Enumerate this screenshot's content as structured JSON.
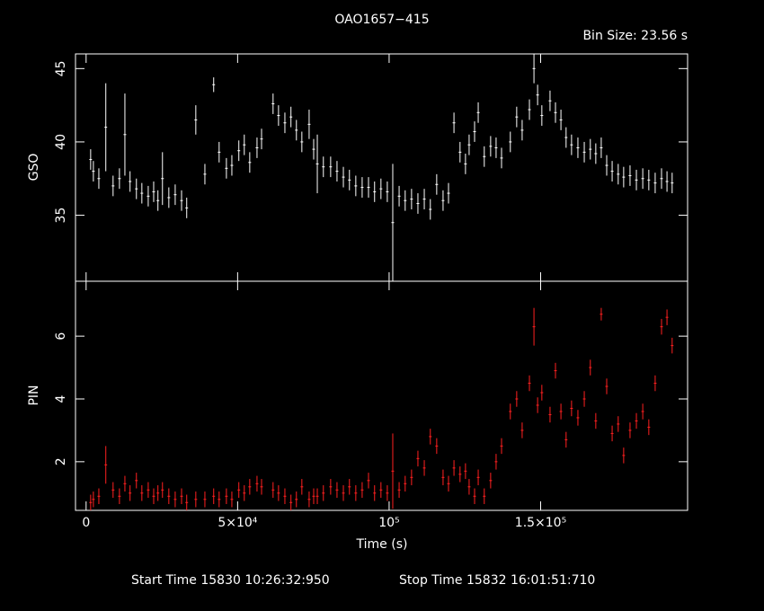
{
  "chart_data": [
    {
      "type": "errorbar",
      "title": "OAO1657−415",
      "subtitle": "Bin Size: 23.56 s",
      "ylabel": "GSO",
      "color": "#ffffff",
      "xlim": [
        -3500,
        198500
      ],
      "ylim": [
        30.5,
        46
      ],
      "yticks": [
        35,
        40,
        45
      ],
      "x": [
        1500,
        2400,
        4200,
        6500,
        8900,
        11000,
        12800,
        14500,
        16600,
        18400,
        20500,
        22300,
        23700,
        25200,
        27300,
        29400,
        31500,
        33200,
        36200,
        39200,
        42100,
        43900,
        46300,
        48100,
        50400,
        52200,
        54000,
        56400,
        57900,
        61700,
        63500,
        65600,
        67600,
        69400,
        71200,
        73600,
        75100,
        76300,
        78300,
        80700,
        82800,
        84900,
        86900,
        89000,
        91100,
        93200,
        95200,
        97300,
        99400,
        101200,
        103300,
        105300,
        107400,
        109500,
        111600,
        113600,
        115700,
        117800,
        119600,
        121400,
        123400,
        125200,
        126400,
        128200,
        129400,
        131400,
        133500,
        135300,
        137100,
        140000,
        142100,
        143900,
        146300,
        147800,
        149000,
        150400,
        153100,
        154900,
        156700,
        158400,
        160200,
        162300,
        164400,
        166400,
        168200,
        170000,
        171800,
        173600,
        175600,
        177400,
        179500,
        181600,
        183700,
        185700,
        187800,
        189900,
        191700,
        193400
      ],
      "values": [
        38.8,
        38.0,
        37.5,
        41,
        37.0,
        37.5,
        40.5,
        37.3,
        36.8,
        36.5,
        36.3,
        36.6,
        36.0,
        37.5,
        36.2,
        36.4,
        36.0,
        35.5,
        41.5,
        37.8,
        43.9,
        39.3,
        38.2,
        38.4,
        39.4,
        39.8,
        38.6,
        39.6,
        40.2,
        42.6,
        41.8,
        41.3,
        41.7,
        40.8,
        40.0,
        41.2,
        39.5,
        38.5,
        38.3,
        38.3,
        38.0,
        37.6,
        37.4,
        37.0,
        36.9,
        36.9,
        36.6,
        36.8,
        36.6,
        34.5,
        36.3,
        36.0,
        36.1,
        35.8,
        36.1,
        35.4,
        37.1,
        36.0,
        36.5,
        41.3,
        39.3,
        38.5,
        39.8,
        40.7,
        42.0,
        39.0,
        39.7,
        39.6,
        38.9,
        40.0,
        41.7,
        40.8,
        42.2,
        45.0,
        43.2,
        41.8,
        42.8,
        42.0,
        41.5,
        40.3,
        39.8,
        39.6,
        39.3,
        39.5,
        39.2,
        39.6,
        38.4,
        38.0,
        37.8,
        37.6,
        37.7,
        37.4,
        37.5,
        37.4,
        37.2,
        37.5,
        37.3,
        37.2
      ],
      "errors": [
        0.7,
        0.7,
        0.7,
        3,
        0.7,
        0.7,
        2.8,
        0.7,
        0.7,
        0.7,
        0.7,
        0.7,
        0.7,
        1.8,
        0.7,
        0.7,
        0.7,
        0.7,
        1,
        0.7,
        0.5,
        0.7,
        0.7,
        0.7,
        0.7,
        0.7,
        0.7,
        0.7,
        0.7,
        0.7,
        0.7,
        0.7,
        0.7,
        0.7,
        0.7,
        1,
        0.7,
        2,
        0.7,
        0.7,
        0.7,
        0.7,
        0.7,
        0.7,
        0.7,
        0.7,
        0.7,
        0.7,
        0.7,
        4,
        0.7,
        0.7,
        0.7,
        0.7,
        0.7,
        0.7,
        0.7,
        0.7,
        0.7,
        0.7,
        0.7,
        0.7,
        0.7,
        0.7,
        0.7,
        0.7,
        0.7,
        0.7,
        0.7,
        0.7,
        0.7,
        0.7,
        0.7,
        1,
        0.7,
        0.7,
        0.7,
        0.7,
        0.7,
        0.7,
        0.7,
        0.7,
        0.7,
        0.7,
        0.7,
        0.7,
        0.7,
        0.7,
        0.7,
        0.7,
        0.7,
        0.7,
        0.7,
        0.7,
        0.7,
        0.7,
        0.7,
        0.7
      ]
    },
    {
      "type": "errorbar",
      "ylabel": "PIN",
      "xlabel": "Time (s)",
      "color": "#ff2020",
      "xlim": [
        -3500,
        198500
      ],
      "ylim": [
        0.45,
        7.75
      ],
      "yticks": [
        2,
        4,
        6
      ],
      "xticks": [
        0,
        {
          "value": 50000,
          "label": "5×10⁴"
        },
        {
          "value": 100000,
          "label": "10⁵"
        },
        {
          "value": 150000,
          "label": "1.5×10⁵"
        }
      ],
      "x": [
        1500,
        2400,
        4200,
        6500,
        8900,
        11000,
        12800,
        14500,
        16600,
        18400,
        20500,
        22300,
        23700,
        25200,
        27300,
        29400,
        31500,
        33200,
        36200,
        39200,
        42100,
        43900,
        46300,
        48100,
        50400,
        52200,
        54000,
        56400,
        57900,
        61700,
        63500,
        65600,
        67600,
        69400,
        71200,
        73600,
        75100,
        76300,
        78300,
        80700,
        82800,
        84900,
        86900,
        89000,
        91100,
        93200,
        95200,
        97300,
        99400,
        101200,
        103300,
        105300,
        107400,
        109500,
        111600,
        113600,
        115700,
        117800,
        119600,
        121400,
        123400,
        125200,
        126400,
        128200,
        129400,
        131400,
        133500,
        135300,
        137100,
        140000,
        142100,
        143900,
        146300,
        147800,
        149000,
        150400,
        153100,
        154900,
        156700,
        158400,
        160200,
        162300,
        164400,
        166400,
        168200,
        170000,
        171800,
        173600,
        175600,
        177400,
        179500,
        181600,
        183700,
        185700,
        187800,
        189900,
        191700,
        193400
      ],
      "values": [
        0.7,
        0.8,
        0.9,
        1.9,
        1.1,
        0.9,
        1.3,
        1.0,
        1.4,
        1.0,
        1.1,
        0.9,
        1.0,
        1.1,
        0.9,
        0.8,
        0.9,
        0.7,
        0.8,
        0.8,
        0.9,
        0.8,
        0.9,
        0.8,
        1.1,
        1.0,
        1.2,
        1.3,
        1.2,
        1.1,
        1.0,
        0.9,
        0.7,
        0.8,
        1.2,
        0.8,
        0.9,
        0.9,
        1.0,
        1.2,
        1.1,
        1.0,
        1.2,
        1.0,
        1.1,
        1.4,
        1.0,
        1.1,
        1.0,
        1.7,
        1.1,
        1.3,
        1.5,
        2.1,
        1.8,
        2.8,
        2.5,
        1.5,
        1.3,
        1.8,
        1.6,
        1.7,
        1.2,
        0.9,
        1.5,
        0.9,
        1.4,
        2.0,
        2.5,
        3.6,
        4.0,
        3.0,
        4.5,
        6.3,
        3.8,
        4.2,
        3.5,
        4.9,
        3.6,
        2.7,
        3.7,
        3.4,
        4.0,
        5.0,
        3.3,
        6.7,
        4.4,
        2.9,
        3.2,
        2.2,
        3.0,
        3.3,
        3.6,
        3.1,
        4.5,
        6.3,
        6.6,
        5.7
      ],
      "errors": [
        0.25,
        0.25,
        0.25,
        0.6,
        0.25,
        0.25,
        0.25,
        0.25,
        0.25,
        0.25,
        0.25,
        0.25,
        0.25,
        0.25,
        0.25,
        0.25,
        0.25,
        0.25,
        0.25,
        0.25,
        0.25,
        0.25,
        0.25,
        0.25,
        0.25,
        0.25,
        0.25,
        0.25,
        0.25,
        0.25,
        0.25,
        0.25,
        0.25,
        0.25,
        0.25,
        0.25,
        0.25,
        0.25,
        0.25,
        0.25,
        0.25,
        0.25,
        0.25,
        0.25,
        0.25,
        0.25,
        0.25,
        0.25,
        0.25,
        1.2,
        0.25,
        0.25,
        0.25,
        0.25,
        0.25,
        0.25,
        0.25,
        0.25,
        0.25,
        0.25,
        0.25,
        0.25,
        0.25,
        0.25,
        0.25,
        0.25,
        0.25,
        0.25,
        0.25,
        0.25,
        0.25,
        0.25,
        0.25,
        0.6,
        0.25,
        0.25,
        0.25,
        0.25,
        0.25,
        0.25,
        0.25,
        0.25,
        0.25,
        0.25,
        0.25,
        0.2,
        0.25,
        0.25,
        0.25,
        0.25,
        0.25,
        0.25,
        0.25,
        0.25,
        0.25,
        0.25,
        0.25,
        0.25
      ],
      "annotations": [
        "Start Time 15830 10:26:32:950",
        "Stop Time 15832 16:01:51:710"
      ]
    }
  ]
}
